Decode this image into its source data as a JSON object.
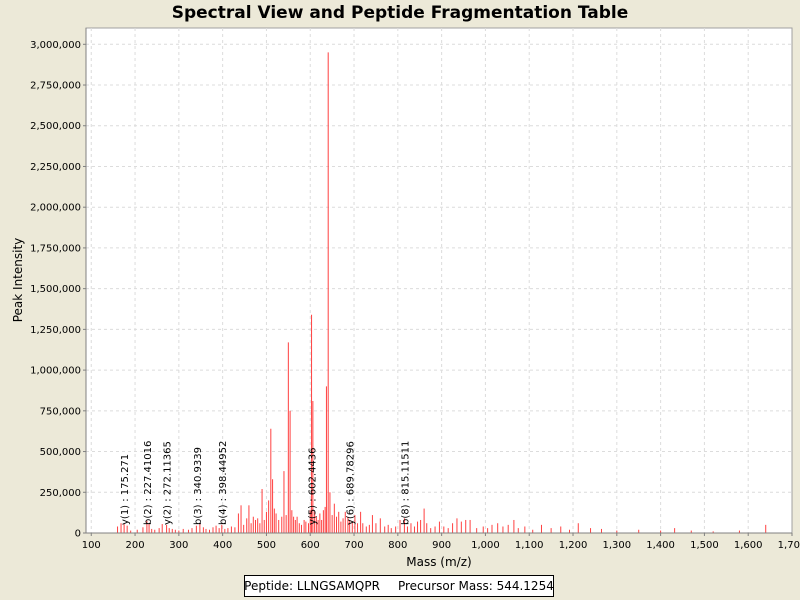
{
  "chart_data": {
    "type": "bar",
    "title": "Spectral View and Peptide Fragmentation Table",
    "xlabel": "Mass (m/z)",
    "ylabel": "Peak Intensity",
    "xlim": [
      88,
      1700
    ],
    "ylim": [
      0,
      3100000
    ],
    "xticks": [
      100,
      200,
      300,
      400,
      500,
      600,
      700,
      800,
      900,
      1000,
      1100,
      1200,
      1300,
      1400,
      1500,
      1600,
      1700
    ],
    "xtick_labels": [
      "100",
      "200",
      "300",
      "400",
      "500",
      "600",
      "700",
      "800",
      "900",
      "1,000",
      "1,100",
      "1,200",
      "1,300",
      "1,400",
      "1,500",
      "1,600",
      "1,700"
    ],
    "yticks": [
      0,
      250000,
      500000,
      750000,
      1000000,
      1250000,
      1500000,
      1750000,
      2000000,
      2250000,
      2500000,
      2750000,
      3000000
    ],
    "ytick_labels": [
      "0",
      "250,000",
      "500,000",
      "750,000",
      "1,000,000",
      "1,250,000",
      "1,500,000",
      "1,750,000",
      "2,000,000",
      "2,250,000",
      "2,500,000",
      "2,750,000",
      "3,000,000"
    ],
    "grid": true,
    "series_color": "#ff4040",
    "peaks": [
      [
        160,
        40000
      ],
      [
        168,
        60000
      ],
      [
        175,
        55000
      ],
      [
        182,
        45000
      ],
      [
        190,
        15000
      ],
      [
        205,
        20000
      ],
      [
        218,
        35000
      ],
      [
        227,
        75000
      ],
      [
        232,
        60000
      ],
      [
        238,
        25000
      ],
      [
        245,
        20000
      ],
      [
        255,
        30000
      ],
      [
        262,
        55000
      ],
      [
        272,
        50000
      ],
      [
        278,
        30000
      ],
      [
        285,
        25000
      ],
      [
        292,
        20000
      ],
      [
        300,
        15000
      ],
      [
        310,
        25000
      ],
      [
        322,
        20000
      ],
      [
        330,
        30000
      ],
      [
        340,
        45000
      ],
      [
        348,
        60000
      ],
      [
        356,
        35000
      ],
      [
        362,
        25000
      ],
      [
        370,
        20000
      ],
      [
        378,
        35000
      ],
      [
        385,
        45000
      ],
      [
        392,
        30000
      ],
      [
        398,
        50000
      ],
      [
        405,
        25000
      ],
      [
        412,
        30000
      ],
      [
        420,
        40000
      ],
      [
        428,
        35000
      ],
      [
        436,
        120000
      ],
      [
        442,
        170000
      ],
      [
        448,
        50000
      ],
      [
        455,
        90000
      ],
      [
        460,
        170000
      ],
      [
        465,
        60000
      ],
      [
        470,
        100000
      ],
      [
        475,
        80000
      ],
      [
        480,
        90000
      ],
      [
        485,
        60000
      ],
      [
        490,
        270000
      ],
      [
        495,
        80000
      ],
      [
        500,
        130000
      ],
      [
        505,
        200000
      ],
      [
        510,
        640000
      ],
      [
        514,
        330000
      ],
      [
        518,
        150000
      ],
      [
        522,
        120000
      ],
      [
        528,
        80000
      ],
      [
        535,
        100000
      ],
      [
        540,
        380000
      ],
      [
        545,
        110000
      ],
      [
        550,
        1170000
      ],
      [
        554,
        750000
      ],
      [
        558,
        140000
      ],
      [
        562,
        100000
      ],
      [
        566,
        80000
      ],
      [
        570,
        100000
      ],
      [
        575,
        60000
      ],
      [
        580,
        50000
      ],
      [
        586,
        80000
      ],
      [
        590,
        70000
      ],
      [
        596,
        60000
      ],
      [
        600,
        140000
      ],
      [
        603,
        1340000
      ],
      [
        606,
        810000
      ],
      [
        610,
        130000
      ],
      [
        614,
        100000
      ],
      [
        618,
        80000
      ],
      [
        622,
        120000
      ],
      [
        626,
        80000
      ],
      [
        630,
        140000
      ],
      [
        634,
        160000
      ],
      [
        637,
        900000
      ],
      [
        641,
        2950000
      ],
      [
        645,
        250000
      ],
      [
        650,
        110000
      ],
      [
        655,
        180000
      ],
      [
        660,
        100000
      ],
      [
        665,
        130000
      ],
      [
        670,
        70000
      ],
      [
        675,
        90000
      ],
      [
        680,
        130000
      ],
      [
        686,
        100000
      ],
      [
        690,
        80000
      ],
      [
        696,
        70000
      ],
      [
        702,
        110000
      ],
      [
        708,
        60000
      ],
      [
        715,
        130000
      ],
      [
        720,
        60000
      ],
      [
        728,
        40000
      ],
      [
        735,
        50000
      ],
      [
        742,
        110000
      ],
      [
        750,
        60000
      ],
      [
        760,
        90000
      ],
      [
        770,
        40000
      ],
      [
        778,
        50000
      ],
      [
        785,
        30000
      ],
      [
        795,
        40000
      ],
      [
        805,
        80000
      ],
      [
        815,
        90000
      ],
      [
        822,
        40000
      ],
      [
        830,
        60000
      ],
      [
        838,
        40000
      ],
      [
        845,
        70000
      ],
      [
        852,
        80000
      ],
      [
        860,
        150000
      ],
      [
        866,
        60000
      ],
      [
        875,
        30000
      ],
      [
        885,
        40000
      ],
      [
        895,
        70000
      ],
      [
        905,
        40000
      ],
      [
        915,
        30000
      ],
      [
        925,
        60000
      ],
      [
        935,
        90000
      ],
      [
        945,
        70000
      ],
      [
        955,
        80000
      ],
      [
        965,
        80000
      ],
      [
        980,
        30000
      ],
      [
        995,
        40000
      ],
      [
        1005,
        30000
      ],
      [
        1015,
        50000
      ],
      [
        1028,
        60000
      ],
      [
        1040,
        40000
      ],
      [
        1052,
        50000
      ],
      [
        1065,
        80000
      ],
      [
        1075,
        30000
      ],
      [
        1090,
        40000
      ],
      [
        1108,
        20000
      ],
      [
        1128,
        50000
      ],
      [
        1150,
        30000
      ],
      [
        1172,
        40000
      ],
      [
        1192,
        20000
      ],
      [
        1212,
        60000
      ],
      [
        1240,
        30000
      ],
      [
        1265,
        25000
      ],
      [
        1300,
        15000
      ],
      [
        1350,
        20000
      ],
      [
        1400,
        15000
      ],
      [
        1432,
        30000
      ],
      [
        1470,
        15000
      ],
      [
        1520,
        10000
      ],
      [
        1580,
        15000
      ],
      [
        1640,
        50000
      ]
    ],
    "annotations": [
      {
        "x": 175.271,
        "label": "y(1) : 175.271"
      },
      {
        "x": 227.41016,
        "label": "b(2) : 227.41016"
      },
      {
        "x": 272.11365,
        "label": "y(2) : 272.11365"
      },
      {
        "x": 340.9339,
        "label": "b(3) : 340.9339"
      },
      {
        "x": 398.44952,
        "label": "b(4) : 398.44952"
      },
      {
        "x": 602.4436,
        "label": "y(5) : 602.4436"
      },
      {
        "x": 689.78296,
        "label": "y(6) : 689.78296"
      },
      {
        "x": 815.11511,
        "label": "b(8) : 815.11511"
      }
    ]
  },
  "legend": {
    "peptide": "Peptide: LLNGSAMQPR",
    "precursor": "Precursor Mass: 544.1254"
  }
}
